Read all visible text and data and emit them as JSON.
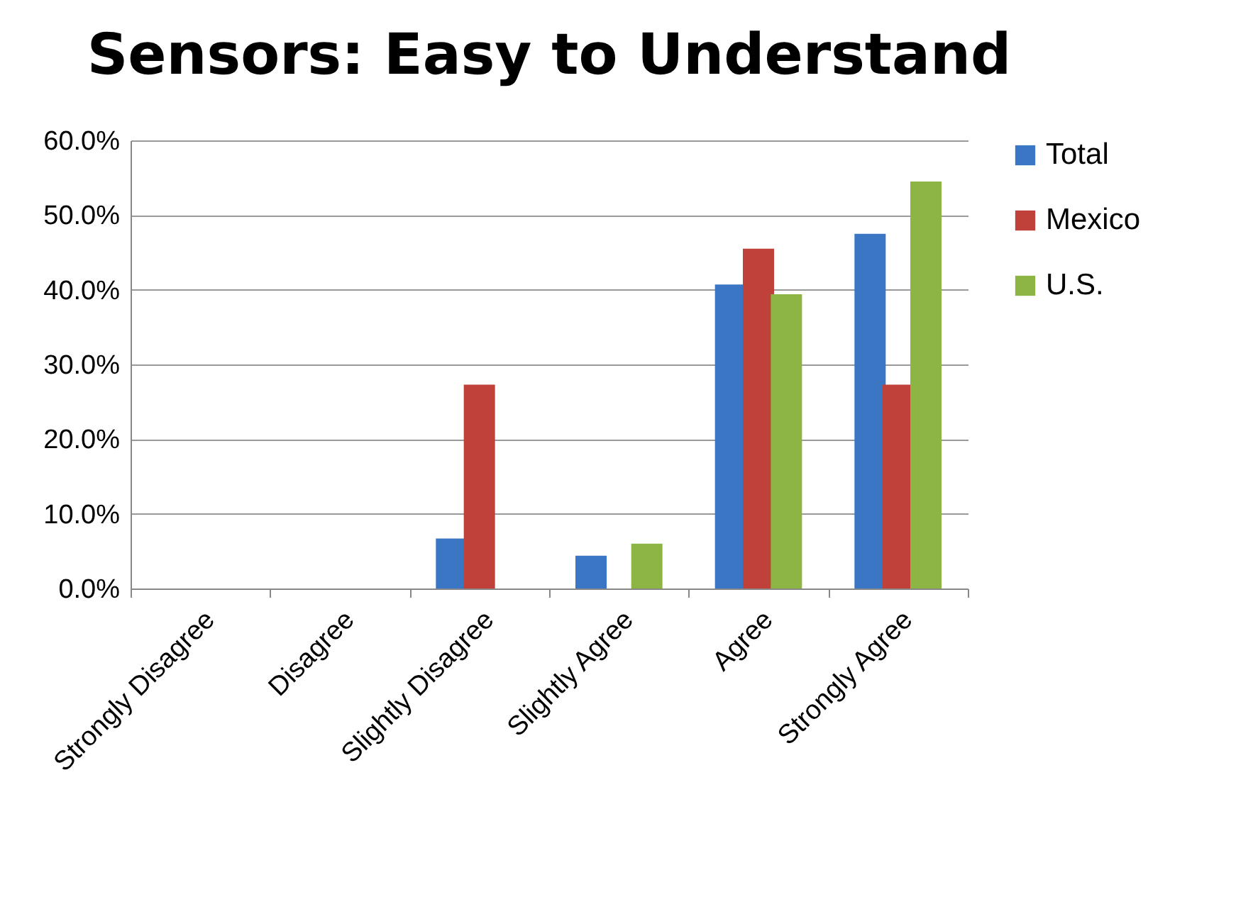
{
  "chart_data": {
    "type": "bar",
    "title": "Sensors: Easy to Understand",
    "categories": [
      "Strongly Disagree",
      "Disagree",
      "Slightly Disagree",
      "Slightly Agree",
      "Agree",
      "Strongly Agree"
    ],
    "series": [
      {
        "name": "Total",
        "color": "#3a76c4",
        "values": [
          0,
          0,
          6.7,
          4.4,
          40.7,
          47.5
        ]
      },
      {
        "name": "Mexico",
        "color": "#c0403a",
        "values": [
          0,
          0,
          27.3,
          0,
          45.5,
          27.3
        ]
      },
      {
        "name": "U.S.",
        "color": "#8cb543",
        "values": [
          0,
          0,
          0,
          6.0,
          39.4,
          54.5
        ]
      }
    ],
    "ylim": [
      0,
      60
    ],
    "yticks": [
      {
        "value": 0,
        "label": "0.0%"
      },
      {
        "value": 10,
        "label": "10.0%"
      },
      {
        "value": 20,
        "label": "20.0%"
      },
      {
        "value": 30,
        "label": "30.0%"
      },
      {
        "value": 40,
        "label": "40.0%"
      },
      {
        "value": 50,
        "label": "50.0%"
      },
      {
        "value": 60,
        "label": "60.0%"
      }
    ],
    "grid": "y",
    "legend": "right"
  }
}
